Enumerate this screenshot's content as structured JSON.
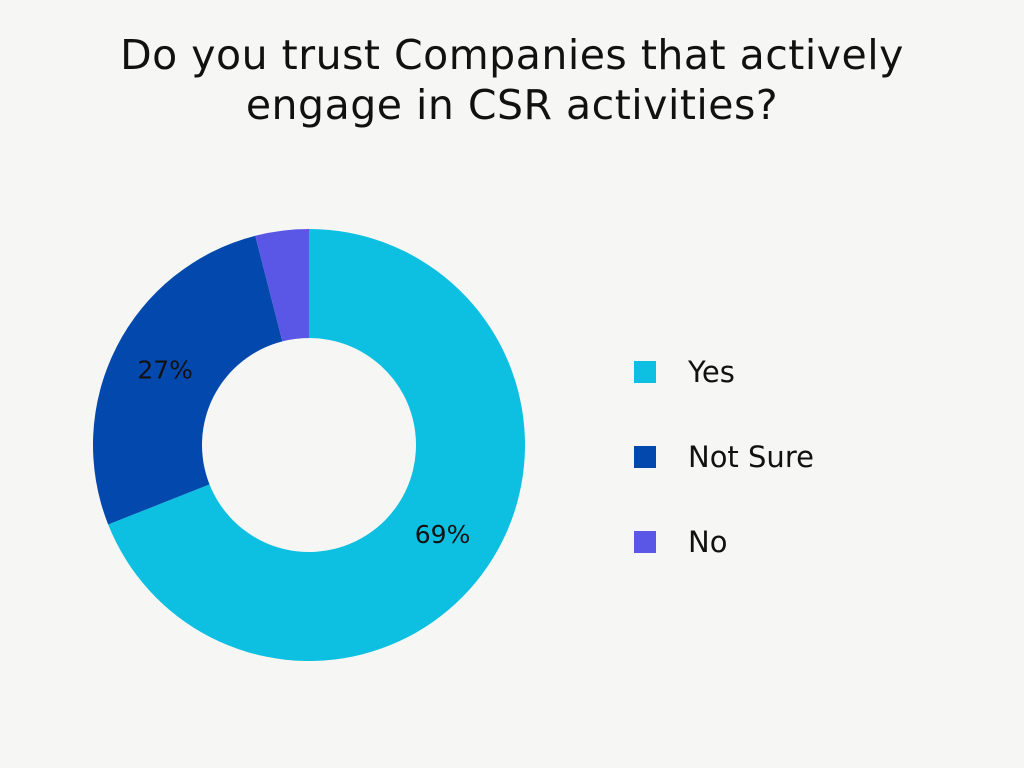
{
  "chart_data": {
    "type": "pie",
    "title": "Do you trust Companies that actively engage in CSR activities?",
    "donut": true,
    "legend_position": "right",
    "slices": [
      {
        "label": "Yes",
        "value": 69,
        "value_label": "69%",
        "color": "#0dc0e1"
      },
      {
        "label": "Not Sure",
        "value": 27,
        "value_label": "27%",
        "color": "#0349ad"
      },
      {
        "label": "No",
        "value": 4,
        "value_label": "",
        "color": "#5a56e6"
      }
    ]
  }
}
